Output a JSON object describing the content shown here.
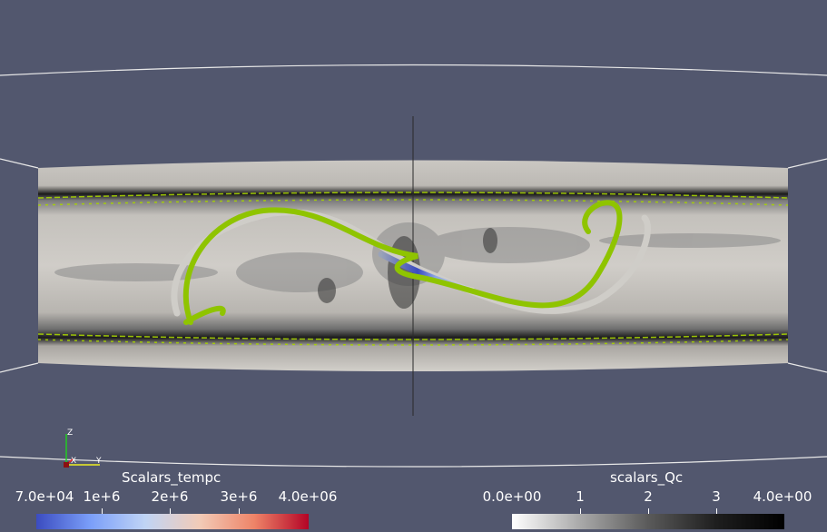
{
  "viewport": {
    "background": "#52576e"
  },
  "axes": {
    "x_label": "X",
    "y_label": "Y",
    "z_label": "Z"
  },
  "legends": [
    {
      "title": "Scalars_tempc",
      "ticks": [
        "7.0e+04",
        "1e+6",
        "2e+6",
        "3e+6",
        "4.0e+06"
      ],
      "range": [
        70000,
        4000000
      ],
      "colormap": [
        "#3b4cc0",
        "#7b9ff9",
        "#c0d4f5",
        "#f2cbb7",
        "#ee8468",
        "#b40426"
      ]
    },
    {
      "title": "scalars_Qc",
      "ticks": [
        "0.0e+00",
        "1",
        "2",
        "3",
        "4.0e+00"
      ],
      "range": [
        0,
        4
      ],
      "colormap": [
        "#ffffff",
        "#a9a9a9",
        "#5a5a5a",
        "#1e1e1e",
        "#000000"
      ]
    }
  ]
}
